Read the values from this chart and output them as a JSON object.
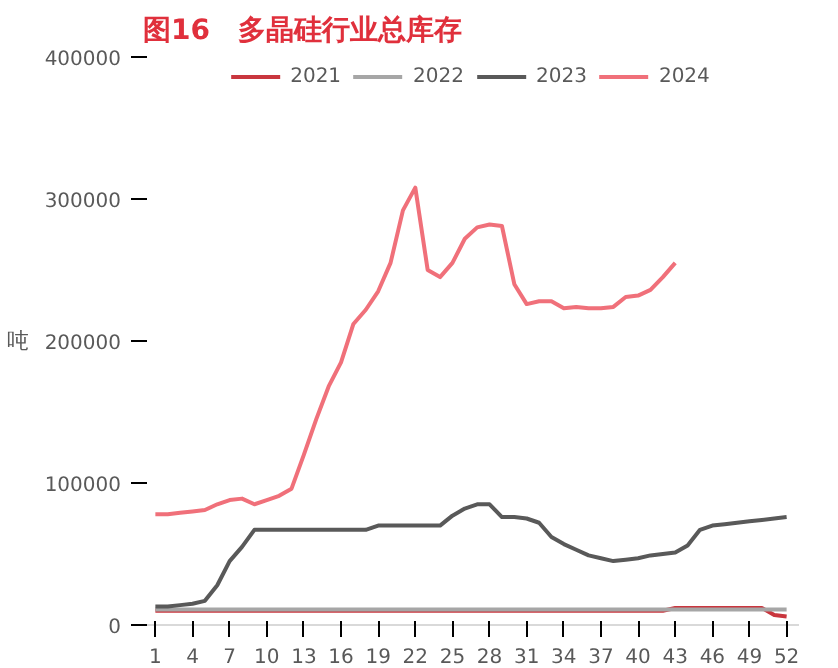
{
  "chart_data": {
    "type": "line",
    "title": "图16　多晶硅行业总库存",
    "ylabel": "吨",
    "x": [
      1,
      2,
      3,
      4,
      5,
      6,
      7,
      8,
      9,
      10,
      11,
      12,
      13,
      14,
      15,
      16,
      17,
      18,
      19,
      20,
      21,
      22,
      23,
      24,
      25,
      26,
      27,
      28,
      29,
      30,
      31,
      32,
      33,
      34,
      35,
      36,
      37,
      38,
      39,
      40,
      41,
      42,
      43,
      44,
      45,
      46,
      47,
      48,
      49,
      50,
      51,
      52
    ],
    "xlim": [
      0,
      53
    ],
    "xticks": [
      1,
      4,
      7,
      10,
      13,
      16,
      19,
      22,
      25,
      28,
      31,
      34,
      37,
      40,
      43,
      46,
      49,
      52
    ],
    "ylim": [
      0,
      400000
    ],
    "yticks": [
      0,
      100000,
      200000,
      300000,
      400000
    ],
    "series": [
      {
        "name": "2021",
        "color": "#c9363e",
        "values": [
          10000,
          10000,
          10000,
          10000,
          10000,
          10000,
          10000,
          10000,
          10000,
          10000,
          10000,
          10000,
          10000,
          10000,
          10000,
          10000,
          10000,
          10000,
          10000,
          10000,
          10000,
          10000,
          10000,
          10000,
          10000,
          10000,
          10000,
          10000,
          10000,
          10000,
          10000,
          10000,
          10000,
          10000,
          10000,
          10000,
          10000,
          10000,
          10000,
          10000,
          10000,
          10000,
          12000,
          12000,
          12000,
          12000,
          12000,
          12000,
          12000,
          12000,
          7000,
          6000
        ]
      },
      {
        "name": "2022",
        "color": "#a6a6a6",
        "values": [
          11000,
          11000,
          11000,
          11000,
          11000,
          11000,
          11000,
          11000,
          11000,
          11000,
          11000,
          11000,
          11000,
          11000,
          11000,
          11000,
          11000,
          11000,
          11000,
          11000,
          11000,
          11000,
          11000,
          11000,
          11000,
          11000,
          11000,
          11000,
          11000,
          11000,
          11000,
          11000,
          11000,
          11000,
          11000,
          11000,
          11000,
          11000,
          11000,
          11000,
          11000,
          11000,
          11000,
          11000,
          11000,
          11000,
          11000,
          11000,
          11000,
          11000,
          11000,
          11000
        ]
      },
      {
        "name": "2023",
        "color": "#595959",
        "values": [
          13000,
          13000,
          14000,
          15000,
          17000,
          28000,
          45000,
          55000,
          67000,
          67000,
          67000,
          67000,
          67000,
          67000,
          67000,
          67000,
          67000,
          67000,
          70000,
          70000,
          70000,
          70000,
          70000,
          70000,
          77000,
          82000,
          85000,
          85000,
          76000,
          76000,
          75000,
          72000,
          62000,
          57000,
          53000,
          49000,
          47000,
          45000,
          46000,
          47000,
          49000,
          50000,
          51000,
          56000,
          67000,
          70000,
          71000,
          72000,
          73000,
          74000,
          75000,
          76000
        ]
      },
      {
        "name": "2024",
        "color": "#f0707a",
        "values": [
          78000,
          78000,
          79000,
          80000,
          81000,
          85000,
          88000,
          89000,
          85000,
          88000,
          91000,
          96000,
          120000,
          145000,
          168000,
          185000,
          212000,
          222000,
          235000,
          255000,
          292000,
          308000,
          250000,
          245000,
          255000,
          272000,
          280000,
          282000,
          281000,
          240000,
          226000,
          228000,
          228000,
          223000,
          224000,
          223000,
          223000,
          224000,
          231000,
          232000,
          236000,
          245000,
          255000,
          null,
          null,
          null,
          null,
          null,
          null,
          null,
          null,
          null
        ]
      }
    ],
    "legend": "top",
    "grid": false
  }
}
